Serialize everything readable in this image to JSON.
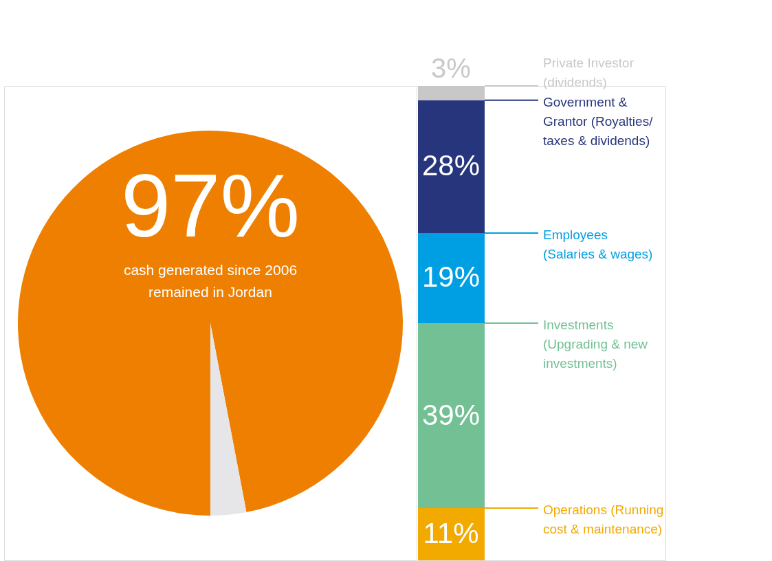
{
  "chart_data": [
    {
      "type": "pie",
      "categories": [
        null,
        null
      ],
      "values": [
        97,
        3
      ],
      "colors": [
        "#ee7f00",
        "#e6e6e8"
      ],
      "value_labels": [
        "97%",
        null
      ],
      "annotations": [
        "cash generated since 2006\nremained in Jordan"
      ]
    },
    {
      "type": "bar",
      "stacked": true,
      "legend": "right",
      "categories": [
        null
      ],
      "series": [
        {
          "name": "Operations (Running\ncost & maintenance)",
          "color": "#f2a900",
          "values": [
            11
          ],
          "value_labels": [
            "11%"
          ]
        },
        {
          "name": "Investments\n(Upgrading & new\ninvestments)",
          "color": "#74c095",
          "values": [
            39
          ],
          "value_labels": [
            "39%"
          ]
        },
        {
          "name": "Employees\n(Salaries & wages)",
          "color": "#009fe3",
          "values": [
            19
          ],
          "value_labels": [
            "19%"
          ]
        },
        {
          "name": "Government &\nGrantor (Royalties/\ntaxes & dividends)",
          "color": "#27367c",
          "values": [
            28
          ],
          "value_labels": [
            "28%"
          ]
        },
        {
          "name": "Private Investor\n(dividends)",
          "color": "#c8c8c8",
          "values": [
            3
          ],
          "value_labels": [
            "3%"
          ]
        }
      ]
    }
  ]
}
